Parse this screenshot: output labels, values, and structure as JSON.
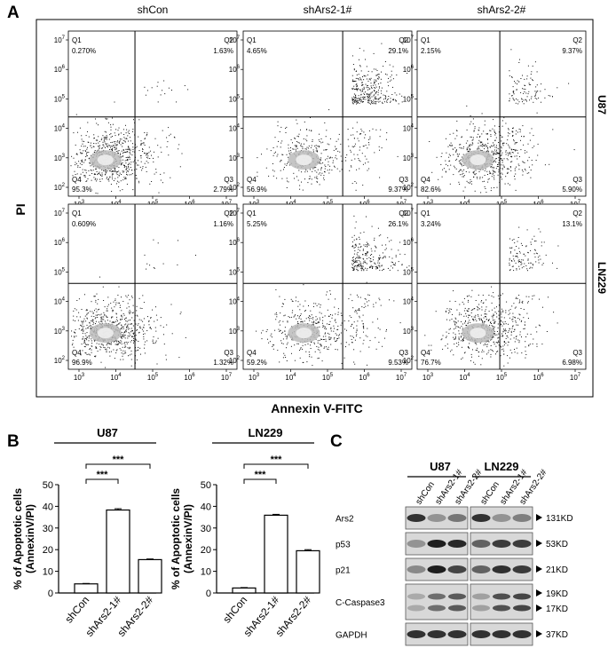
{
  "panel_a": {
    "letter": "A",
    "columns": [
      "shCon",
      "shArs2-1#",
      "shArs2-2#"
    ],
    "rows": [
      "U87",
      "LN229"
    ],
    "y_axis_label": "PI",
    "x_axis_label": "Annexin V-FITC",
    "y_ticks": [
      "10^2",
      "10^3",
      "10^4",
      "10^5",
      "10^6",
      "10^7"
    ],
    "x_ticks": [
      "10^3",
      "10^4",
      "10^5",
      "10^6",
      "10^7"
    ],
    "quadrant_names": [
      "Q1",
      "Q2",
      "Q3",
      "Q4"
    ],
    "plots": [
      [
        {
          "q1": "0.270%",
          "q2": "1.63%",
          "q3": "2.79%",
          "q4": "95.3%"
        },
        {
          "q1": "4.65%",
          "q2": "29.1%",
          "q3": "9.37%",
          "q4": "56.9%"
        },
        {
          "q1": "2.15%",
          "q2": "9.37%",
          "q3": "5.90%",
          "q4": "82.6%"
        }
      ],
      [
        {
          "q1": "0.609%",
          "q2": "1.16%",
          "q3": "1.32%",
          "q4": "96.9%"
        },
        {
          "q1": "5.25%",
          "q2": "26.1%",
          "q3": "9.53%",
          "q4": "59.2%"
        },
        {
          "q1": "3.24%",
          "q2": "13.1%",
          "q3": "6.98%",
          "q4": "76.7%"
        }
      ]
    ]
  },
  "panel_b": {
    "letter": "B",
    "ylabel_line1": "% of Apoptotic cells",
    "ylabel_line2": "(AnnexinV/PI)",
    "significance": "***"
  },
  "panel_c": {
    "letter": "C",
    "groups": [
      "U87",
      "LN229"
    ],
    "lanes": [
      "shCon",
      "shArs2-1#",
      "shArs2-2#"
    ],
    "proteins": [
      "Ars2",
      "p53",
      "p21",
      "C-Caspase3",
      "GAPDH"
    ],
    "sizes": [
      "131KD",
      "53KD",
      "21KD",
      "19KD",
      "17KD",
      "37KD"
    ],
    "band_intensity": {
      "U87": {
        "Ars2": [
          0.85,
          0.35,
          0.5
        ],
        "p53": [
          0.35,
          0.95,
          0.9
        ],
        "p21": [
          0.4,
          0.95,
          0.75
        ],
        "C-Caspase3": [
          0.25,
          0.55,
          0.65
        ],
        "GAPDH": [
          0.85,
          0.85,
          0.85
        ]
      },
      "LN229": {
        "Ars2": [
          0.85,
          0.35,
          0.45
        ],
        "p53": [
          0.6,
          0.8,
          0.8
        ],
        "p21": [
          0.6,
          0.85,
          0.8
        ],
        "C-Caspase3": [
          0.3,
          0.7,
          0.75
        ],
        "GAPDH": [
          0.85,
          0.85,
          0.85
        ]
      }
    }
  },
  "chart_data": [
    {
      "type": "bar",
      "title": "U87",
      "categories": [
        "shCon",
        "shArs2-1#",
        "shArs2-2#"
      ],
      "values": [
        4.2,
        38.3,
        15.4
      ],
      "errors": [
        0.2,
        0.6,
        0.3
      ],
      "ylabel": "% of Apoptotic cells (AnnexinV/PI)",
      "ylim": [
        0,
        50
      ],
      "yticks": [
        "0",
        "10",
        "20",
        "30",
        "40",
        "50"
      ],
      "comparisons": [
        {
          "from": "shCon",
          "to": "shArs2-1#",
          "label": "***"
        },
        {
          "from": "shCon",
          "to": "shArs2-2#",
          "label": "***"
        }
      ]
    },
    {
      "type": "bar",
      "title": "LN229",
      "categories": [
        "shCon",
        "shArs2-1#",
        "shArs2-2#"
      ],
      "values": [
        2.3,
        35.9,
        19.5
      ],
      "errors": [
        0.2,
        0.4,
        0.5
      ],
      "ylabel": "% of Apoptotic cells (AnnexinV/PI)",
      "ylim": [
        0,
        50
      ],
      "yticks": [
        "0",
        "10",
        "20",
        "30",
        "40",
        "50"
      ],
      "comparisons": [
        {
          "from": "shCon",
          "to": "shArs2-1#",
          "label": "***"
        },
        {
          "from": "shCon",
          "to": "shArs2-2#",
          "label": "***"
        }
      ]
    }
  ]
}
